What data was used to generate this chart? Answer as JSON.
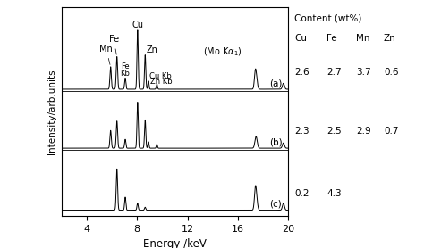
{
  "xlabel": "Energy /keV",
  "ylabel": "Intensity/arb.units",
  "xlim": [
    2,
    20
  ],
  "xticks": [
    4,
    8,
    12,
    16,
    20
  ],
  "spectra_color": "#000000",
  "table_header": "Content (wt%)",
  "table_elements": [
    "Cu",
    "Fe",
    "Mn",
    "Zn"
  ],
  "table_data": [
    [
      "(a)",
      "2.6",
      "2.7",
      "3.7",
      "0.6"
    ],
    [
      "(b)",
      "2.3",
      "2.5",
      "2.9",
      "0.7"
    ],
    [
      "(c)",
      "0.2",
      "4.3",
      "-",
      "-"
    ]
  ],
  "peaks_a": {
    "Mn_Ka": {
      "mu": 5.9,
      "sigma": 0.055,
      "amp": 0.38
    },
    "Fe_Ka": {
      "mu": 6.4,
      "sigma": 0.055,
      "amp": 0.55
    },
    "Fe_Kb": {
      "mu": 7.06,
      "sigma": 0.05,
      "amp": 0.19
    },
    "Cu_Ka": {
      "mu": 8.04,
      "sigma": 0.05,
      "amp": 1.0
    },
    "Zn_Ka": {
      "mu": 8.64,
      "sigma": 0.05,
      "amp": 0.58
    },
    "Cu_Kb": {
      "mu": 8.9,
      "sigma": 0.045,
      "amp": 0.14
    },
    "Zn_Kb": {
      "mu": 9.57,
      "sigma": 0.045,
      "amp": 0.09
    },
    "Mo_Ka1": {
      "mu": 17.44,
      "sigma": 0.09,
      "amp": 0.22
    },
    "Mo_Ka2": {
      "mu": 17.37,
      "sigma": 0.07,
      "amp": 0.16
    },
    "Mo_Kb1": {
      "mu": 19.61,
      "sigma": 0.08,
      "amp": 0.1
    }
  },
  "peaks_b": {
    "Mn_Ka": {
      "mu": 5.9,
      "sigma": 0.055,
      "amp": 0.3
    },
    "Fe_Ka": {
      "mu": 6.4,
      "sigma": 0.055,
      "amp": 0.46
    },
    "Fe_Kb": {
      "mu": 7.06,
      "sigma": 0.05,
      "amp": 0.15
    },
    "Cu_Ka": {
      "mu": 8.04,
      "sigma": 0.05,
      "amp": 0.78
    },
    "Zn_Ka": {
      "mu": 8.64,
      "sigma": 0.05,
      "amp": 0.48
    },
    "Cu_Kb": {
      "mu": 8.9,
      "sigma": 0.045,
      "amp": 0.11
    },
    "Zn_Kb": {
      "mu": 9.57,
      "sigma": 0.045,
      "amp": 0.07
    },
    "Mo_Ka1": {
      "mu": 17.44,
      "sigma": 0.09,
      "amp": 0.2
    },
    "Mo_Kb1": {
      "mu": 19.61,
      "sigma": 0.08,
      "amp": 0.09
    }
  },
  "peaks_c": {
    "Fe_Ka": {
      "mu": 6.4,
      "sigma": 0.055,
      "amp": 0.7
    },
    "Fe_Kb": {
      "mu": 7.06,
      "sigma": 0.05,
      "amp": 0.22
    },
    "Cu_Ka": {
      "mu": 8.04,
      "sigma": 0.05,
      "amp": 0.12
    },
    "Zn_Ka": {
      "mu": 8.64,
      "sigma": 0.05,
      "amp": 0.05
    },
    "Mo_Ka1": {
      "mu": 17.44,
      "sigma": 0.09,
      "amp": 0.28
    },
    "Mo_Ka2": {
      "mu": 17.37,
      "sigma": 0.07,
      "amp": 0.18
    },
    "Mo_Kb1": {
      "mu": 19.61,
      "sigma": 0.08,
      "amp": 0.12
    }
  }
}
